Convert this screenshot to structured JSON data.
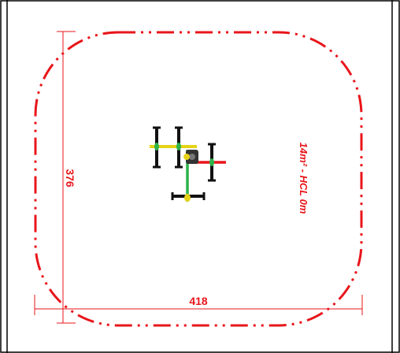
{
  "colors": {
    "frame": "#000000",
    "safety_zone": "#e8161b",
    "dimension_lines": "#e8161b",
    "equipment_black": "#111111",
    "equipment_yellow": "#e6d317",
    "equipment_red": "#e8161b",
    "equipment_green": "#2db34a",
    "equipment_gray": "#555555"
  },
  "dimensions": {
    "width_label": "418",
    "height_label": "376"
  },
  "safety_zone_label": "14m² - HCL 0m"
}
